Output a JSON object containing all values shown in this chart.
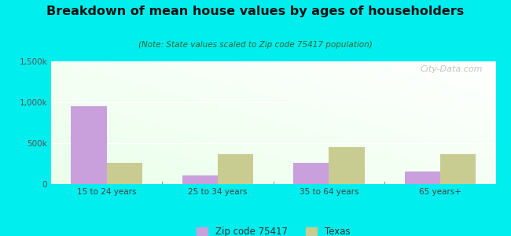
{
  "title": "Breakdown of mean house values by ages of householders",
  "subtitle": "(Note: State values scaled to Zip code 75417 population)",
  "categories": [
    "15 to 24 years",
    "25 to 34 years",
    "35 to 64 years",
    "65 years+"
  ],
  "zip_values": [
    950000,
    110000,
    260000,
    150000
  ],
  "texas_values": [
    255000,
    370000,
    450000,
    370000
  ],
  "zip_color": "#c9a0dc",
  "texas_color": "#c8cc90",
  "background_outer": "#00eeee",
  "ylim": [
    0,
    1500000
  ],
  "yticks": [
    0,
    500000,
    1000000,
    1500000
  ],
  "ytick_labels": [
    "0",
    "500k",
    "1,000k",
    "1,500k"
  ],
  "bar_width": 0.32,
  "legend_zip_label": "Zip code 75417",
  "legend_texas_label": "Texas",
  "watermark": "City-Data.com"
}
